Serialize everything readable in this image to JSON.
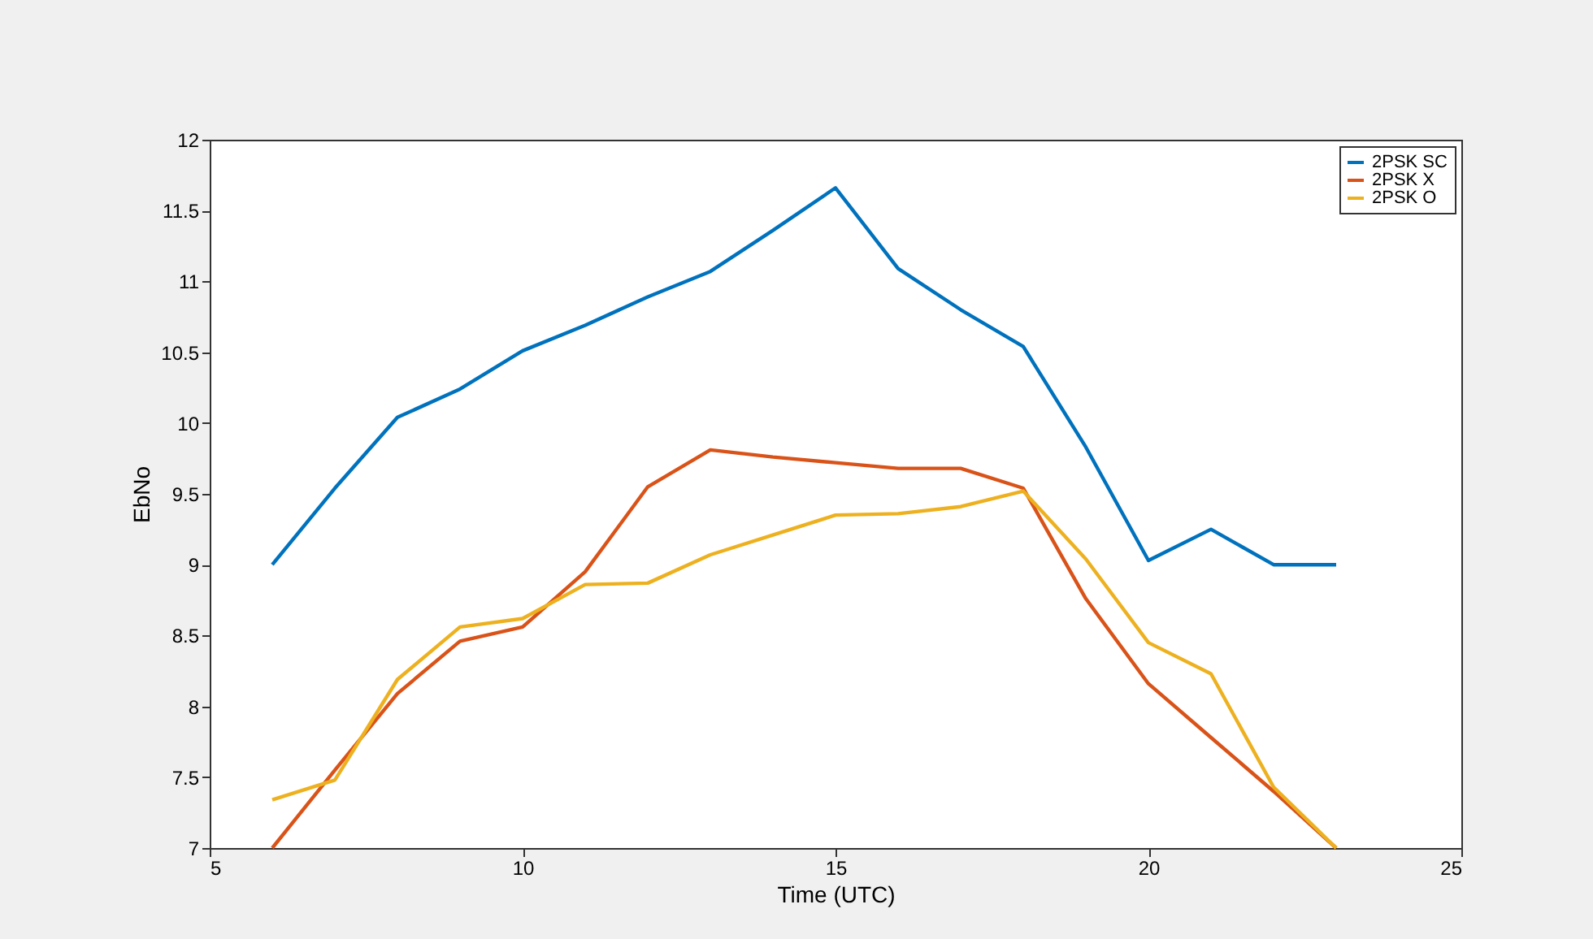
{
  "chart_data": {
    "type": "line",
    "xlabel": "Time (UTC)",
    "ylabel": "EbNo",
    "x": [
      6,
      7,
      8,
      9,
      10,
      11,
      12,
      13,
      14,
      15,
      16,
      17,
      18,
      19,
      20,
      21,
      22,
      23
    ],
    "series": [
      {
        "name": "2PSK SC",
        "color": "#0072bd",
        "values": [
          9.0,
          9.54,
          10.04,
          10.24,
          10.51,
          10.69,
          10.89,
          11.07,
          11.36,
          11.66,
          11.09,
          10.8,
          10.54,
          9.83,
          9.03,
          9.25,
          9.0,
          9.0
        ]
      },
      {
        "name": "2PSK X",
        "color": "#d95319",
        "values": [
          7.0,
          7.55,
          8.09,
          8.46,
          8.56,
          8.95,
          9.55,
          9.81,
          9.76,
          9.72,
          9.68,
          9.68,
          9.54,
          8.76,
          8.16,
          7.78,
          7.4,
          7.0
        ]
      },
      {
        "name": "2PSK O",
        "color": "#edb120",
        "values": [
          7.34,
          7.48,
          8.19,
          8.56,
          8.62,
          8.86,
          8.87,
          9.07,
          9.21,
          9.35,
          9.36,
          9.41,
          9.52,
          9.04,
          8.45,
          8.23,
          7.43,
          7.0
        ]
      }
    ],
    "xlim": [
      5,
      25
    ],
    "xticks": [
      5,
      10,
      15,
      20,
      25
    ],
    "ylim": [
      7,
      12
    ],
    "yticks": [
      7,
      7.5,
      8,
      8.5,
      9,
      9.5,
      10,
      10.5,
      11,
      11.5,
      12
    ],
    "grid": false,
    "legend": "top right",
    "marker": "none",
    "line_style": "solid"
  }
}
